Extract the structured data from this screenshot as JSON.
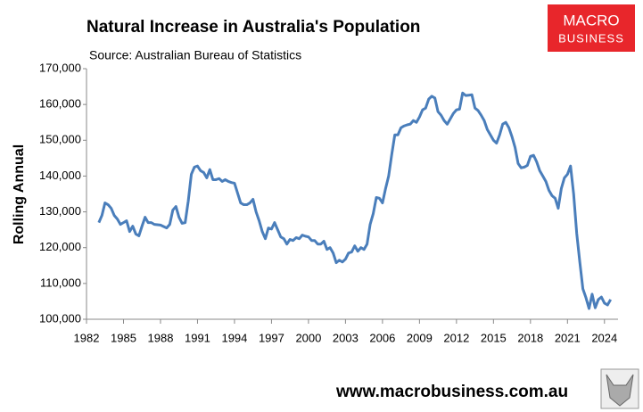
{
  "chart_data": {
    "type": "line",
    "title": "Natural Increase in Australia's Population",
    "subtitle": "Source: Australian Bureau of Statistics",
    "y_label": "Rolling Annual",
    "logo": [
      "MACRO",
      "BUSINESS"
    ],
    "footer": "www.macrobusiness.com.au",
    "color": "#4a7ebb",
    "grid": false,
    "x": [
      1983.0,
      1983.25,
      1983.5,
      1983.75,
      1984.0,
      1984.25,
      1984.5,
      1984.75,
      1985.0,
      1985.25,
      1985.5,
      1985.75,
      1986.0,
      1986.25,
      1986.5,
      1986.75,
      1987.0,
      1987.25,
      1987.5,
      1988.0,
      1988.5,
      1988.75,
      1989.0,
      1989.25,
      1989.5,
      1989.75,
      1990.0,
      1990.25,
      1990.5,
      1990.75,
      1991.0,
      1991.25,
      1991.5,
      1991.75,
      1992.0,
      1992.25,
      1992.5,
      1992.75,
      1993.0,
      1993.25,
      1993.5,
      1993.75,
      1994.0,
      1994.5,
      1994.75,
      1995.0,
      1995.25,
      1995.5,
      1995.75,
      1996.0,
      1996.25,
      1996.5,
      1996.75,
      1997.0,
      1997.25,
      1997.5,
      1997.75,
      1998.0,
      1998.25,
      1998.5,
      1998.75,
      1999.0,
      1999.25,
      1999.5,
      1999.75,
      2000.0,
      2000.25,
      2000.5,
      2000.75,
      2001.0,
      2001.25,
      2001.5,
      2001.75,
      2002.0,
      2002.25,
      2002.5,
      2002.75,
      2003.0,
      2003.25,
      2003.5,
      2003.75,
      2004.0,
      2004.25,
      2004.5,
      2004.75,
      2005.0,
      2005.25,
      2005.5,
      2005.75,
      2006.0,
      2006.25,
      2006.5,
      2006.75,
      2007.0,
      2007.25,
      2007.5,
      2007.75,
      2008.0,
      2008.25,
      2008.5,
      2008.75,
      2009.0,
      2009.25,
      2009.5,
      2009.75,
      2010.0,
      2010.25,
      2010.5,
      2010.75,
      2011.0,
      2011.25,
      2011.5,
      2011.75,
      2012.0,
      2012.25,
      2012.5,
      2012.75,
      2013.0,
      2013.25,
      2013.5,
      2013.75,
      2014.0,
      2014.25,
      2014.5,
      2014.75,
      2015.0,
      2015.25,
      2015.5,
      2015.75,
      2016.0,
      2016.25,
      2016.5,
      2016.75,
      2017.0,
      2017.25,
      2017.5,
      2017.75,
      2018.0,
      2018.25,
      2018.5,
      2018.75,
      2019.0,
      2019.25,
      2019.5,
      2019.75,
      2020.0,
      2020.25,
      2020.5,
      2020.75,
      2021.0,
      2021.25,
      2021.5,
      2021.75,
      2022.0,
      2022.25,
      2022.5,
      2022.75,
      2023.0,
      2023.25,
      2023.5,
      2023.75,
      2024.0,
      2024.25,
      2024.5
    ],
    "values": [
      127000,
      129000,
      132500,
      132000,
      131000,
      129000,
      128000,
      126500,
      127000,
      127500,
      124500,
      126000,
      123800,
      123300,
      126000,
      128500,
      127000,
      127000,
      126500,
      126300,
      125500,
      126500,
      130500,
      131500,
      128500,
      126800,
      127000,
      133000,
      140500,
      142500,
      142800,
      141500,
      141000,
      139500,
      141800,
      139000,
      139000,
      139300,
      138500,
      139000,
      138500,
      138200,
      138000,
      132500,
      132000,
      132000,
      132500,
      133500,
      130000,
      127500,
      124500,
      122500,
      125500,
      125200,
      127000,
      125000,
      123000,
      122500,
      121000,
      122300,
      122000,
      122800,
      122500,
      123500,
      123200,
      123000,
      122000,
      122000,
      121000,
      121000,
      121800,
      119500,
      120000,
      118500,
      115800,
      116500,
      116000,
      116800,
      118500,
      118800,
      120500,
      119000,
      120000,
      119500,
      121000,
      126500,
      129500,
      134000,
      133800,
      132500,
      136500,
      140000,
      146000,
      151500,
      151500,
      153500,
      154000,
      154300,
      154500,
      155500,
      155000,
      156500,
      158500,
      159000,
      161500,
      162300,
      161800,
      158000,
      157000,
      155500,
      154500,
      156000,
      157500,
      158500,
      158700,
      163200,
      162500,
      162600,
      162700,
      159000,
      158300,
      157000,
      155500,
      153000,
      151500,
      150000,
      149200,
      151500,
      154500,
      155000,
      153500,
      151000,
      148000,
      143500,
      142300,
      142500,
      143000,
      145500,
      145800,
      144000,
      141500,
      140000,
      138500,
      136000,
      134500,
      133800,
      131000,
      136500,
      139500,
      140500,
      142800,
      135000,
      124000,
      116000,
      108500,
      106000,
      103000,
      107000,
      103200,
      105500,
      106200,
      104500,
      104000,
      105500
    ],
    "xlim": [
      1982,
      2025.1
    ],
    "xticks": [
      1982,
      1985,
      1988,
      1991,
      1994,
      1997,
      2000,
      2003,
      2006,
      2009,
      2012,
      2015,
      2018,
      2021,
      2024
    ],
    "ylim": [
      100000,
      170000
    ],
    "yticks": [
      {
        "value": 100000,
        "label": "100,000"
      },
      {
        "value": 110000,
        "label": "110,000"
      },
      {
        "value": 120000,
        "label": "120,000"
      },
      {
        "value": 130000,
        "label": "130,000"
      },
      {
        "value": 140000,
        "label": "140,000"
      },
      {
        "value": 150000,
        "label": "150,000"
      },
      {
        "value": 160000,
        "label": "160,000"
      },
      {
        "value": 170000,
        "label": "170,000"
      }
    ]
  }
}
